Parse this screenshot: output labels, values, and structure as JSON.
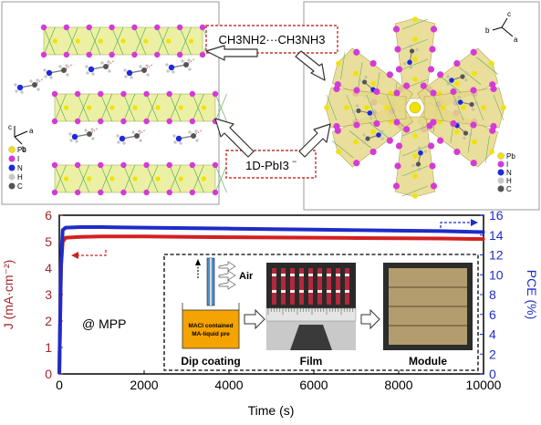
{
  "structure": {
    "label_chain": "CH3NH2···CH3NH3",
    "label_1d": "1D-PbI3",
    "label_1d_charge": "−",
    "left_axes": {
      "a": "a",
      "b": "b",
      "c": "c"
    },
    "right_axes": {
      "a": "a",
      "b": "b",
      "c": "c"
    },
    "legend_left": [
      {
        "symbol": "Pb",
        "color": "#f2e200"
      },
      {
        "symbol": "I",
        "color": "#d43ad6"
      },
      {
        "symbol": "N",
        "color": "#1c2bd8"
      },
      {
        "symbol": "H",
        "color": "#c8c8c8"
      },
      {
        "symbol": "C",
        "color": "#555555"
      }
    ],
    "legend_right": [
      {
        "symbol": "Pb",
        "color": "#f2e200"
      },
      {
        "symbol": "I",
        "color": "#d43ad6"
      },
      {
        "symbol": "N",
        "color": "#1c2bd8"
      },
      {
        "symbol": "H",
        "color": "#c8c8c8"
      },
      {
        "symbol": "C",
        "color": "#555555"
      }
    ]
  },
  "chart_data": {
    "type": "line",
    "xlabel": "Time (s)",
    "ylabel_left": "J (mA·cm⁻²)",
    "ylabel_right": "PCE (%)",
    "xlim": [
      0,
      10000
    ],
    "ylim_left": [
      0,
      6
    ],
    "ylim_right": [
      0,
      16
    ],
    "xticks": [
      0,
      2000,
      4000,
      6000,
      8000,
      10000
    ],
    "yticks_left": [
      0,
      1,
      2,
      3,
      4,
      5,
      6
    ],
    "yticks_right": [
      0,
      2,
      4,
      6,
      8,
      10,
      12,
      14,
      16
    ],
    "annotation": "@ MPP",
    "series": [
      {
        "axis": "left",
        "color": "#d42020",
        "x": [
          0,
          40,
          80,
          150,
          500,
          1000,
          2000,
          3000,
          4000,
          5000,
          6000,
          7000,
          8000,
          9000,
          10000
        ],
        "y": [
          0,
          4.0,
          5.0,
          5.15,
          5.18,
          5.2,
          5.2,
          5.18,
          5.17,
          5.16,
          5.15,
          5.14,
          5.13,
          5.12,
          5.1
        ]
      },
      {
        "axis": "right",
        "color": "#1f2cc8",
        "x": [
          0,
          40,
          80,
          150,
          500,
          1000,
          2000,
          3000,
          4000,
          5000,
          6000,
          7000,
          8000,
          9000,
          10000
        ],
        "y": [
          0,
          11.0,
          14.5,
          14.75,
          14.8,
          14.8,
          14.75,
          14.7,
          14.65,
          14.6,
          14.55,
          14.5,
          14.45,
          14.4,
          14.3
        ]
      }
    ]
  },
  "inset": {
    "beaker_text_1": "MACl contained",
    "beaker_text_2": "MA-liquid pre",
    "air_label": "Air",
    "caption_dip": "Dip coating",
    "caption_film": "Film",
    "caption_module": "Module",
    "accent": "#f4a300"
  }
}
